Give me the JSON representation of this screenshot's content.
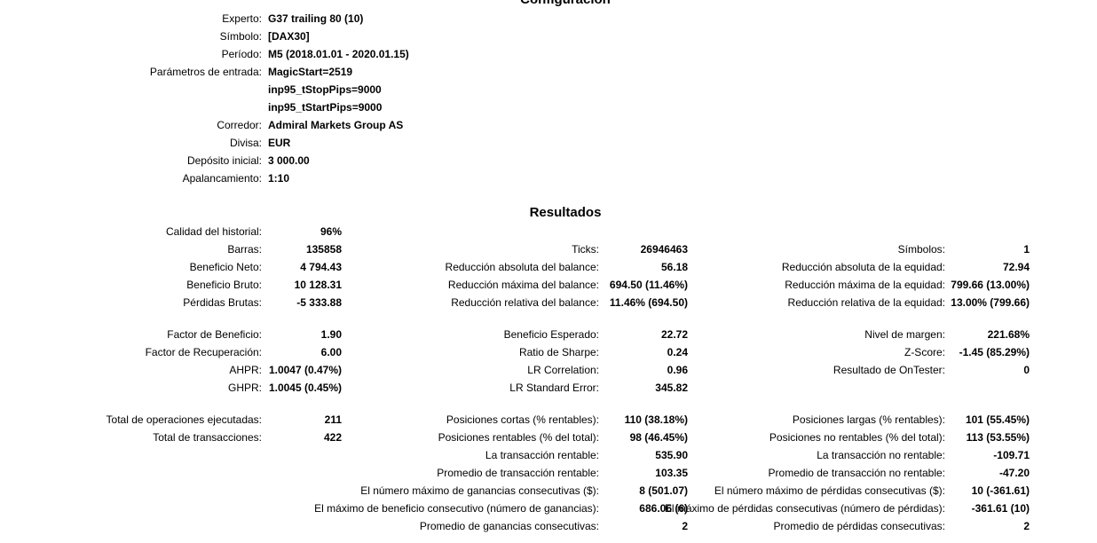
{
  "colors": {
    "text": "#000000",
    "background": "#ffffff"
  },
  "configuration": {
    "title": "Configuración",
    "rows": [
      {
        "label": "Experto:",
        "value": "G37 trailing 80 (10)"
      },
      {
        "label": "Símbolo:",
        "value": "[DAX30]"
      },
      {
        "label": "Período:",
        "value": "M5 (2018.01.01 - 2020.01.15)"
      },
      {
        "label": "Parámetros de entrada:",
        "value": "MagicStart=2519"
      },
      {
        "label": "",
        "value": "inp95_tStopPips=9000"
      },
      {
        "label": "",
        "value": "inp95_tStartPips=9000"
      },
      {
        "label": "Corredor:",
        "value": "Admiral Markets Group AS"
      },
      {
        "label": "Divisa:",
        "value": "EUR"
      },
      {
        "label": "Depósito inicial:",
        "value": "3 000.00"
      },
      {
        "label": "Apalancamiento:",
        "value": "1:10"
      }
    ]
  },
  "results": {
    "title": "Resultados",
    "rows": [
      {
        "c1l": "Calidad del historial:",
        "c1v": "96%",
        "c2l": "",
        "c2v": "",
        "c3l": "",
        "c3v": ""
      },
      {
        "c1l": "Barras:",
        "c1v": "135858",
        "c2l": "Ticks:",
        "c2v": "26946463",
        "c3l": "Símbolos:",
        "c3v": "1"
      },
      {
        "c1l": "Beneficio Neto:",
        "c1v": "4 794.43",
        "c2l": "Reducción absoluta del balance:",
        "c2v": "56.18",
        "c3l": "Reducción absoluta de la equidad:",
        "c3v": "72.94"
      },
      {
        "c1l": "Beneficio Bruto:",
        "c1v": "10 128.31",
        "c2l": "Reducción máxima del balance:",
        "c2v": "694.50 (11.46%)",
        "c3l": "Reducción máxima de la equidad:",
        "c3v": "799.66 (13.00%)"
      },
      {
        "c1l": "Pérdidas Brutas:",
        "c1v": "-5 333.88",
        "c2l": "Reducción relativa del balance:",
        "c2v": "11.46% (694.50)",
        "c3l": "Reducción relativa de la equidad:",
        "c3v": "13.00% (799.66)"
      },
      {
        "spacer": true
      },
      {
        "c1l": "Factor de Beneficio:",
        "c1v": "1.90",
        "c2l": "Beneficio Esperado:",
        "c2v": "22.72",
        "c3l": "Nivel de margen:",
        "c3v": "221.68%"
      },
      {
        "c1l": "Factor de Recuperación:",
        "c1v": "6.00",
        "c2l": "Ratio de Sharpe:",
        "c2v": "0.24",
        "c3l": "Z-Score:",
        "c3v": "-1.45 (85.29%)"
      },
      {
        "c1l": "AHPR:",
        "c1v": "1.0047 (0.47%)",
        "c2l": "LR Correlation:",
        "c2v": "0.96",
        "c3l": "Resultado de OnTester:",
        "c3v": "0"
      },
      {
        "c1l": "GHPR:",
        "c1v": "1.0045 (0.45%)",
        "c2l": "LR Standard Error:",
        "c2v": "345.82",
        "c3l": "",
        "c3v": ""
      },
      {
        "spacer": true
      },
      {
        "c1l": "Total de operaciones ejecutadas:",
        "c1v": "211",
        "c2l": "Posiciones cortas (% rentables):",
        "c2v": "110 (38.18%)",
        "c3l": "Posiciones largas (% rentables):",
        "c3v": "101 (55.45%)"
      },
      {
        "c1l": "Total de transacciones:",
        "c1v": "422",
        "c2l": "Posiciones rentables (% del total):",
        "c2v": "98 (46.45%)",
        "c3l": "Posiciones no rentables (% del total):",
        "c3v": "113 (53.55%)"
      },
      {
        "c1l": "",
        "c1v": "",
        "c2l": "La transacción rentable:",
        "c2v": "535.90",
        "c3l": "La transacción no rentable:",
        "c3v": "-109.71"
      },
      {
        "c1l": "",
        "c1v": "",
        "c2l": "Promedio de transacción rentable:",
        "c2v": "103.35",
        "c3l": "Promedio de transacción no rentable:",
        "c3v": "-47.20"
      },
      {
        "c1l": "",
        "c1v": "",
        "c2l": "El número máximo de ganancias consecutivas ($):",
        "c2v": "8 (501.07)",
        "c3l": "El número máximo de pérdidas consecutivas ($):",
        "c3v": "10 (-361.61)"
      },
      {
        "c1l": "",
        "c1v": "",
        "c2l": "El máximo de beneficio consecutivo (número de ganancias):",
        "c2v": "686.06 (6)",
        "c3l": "El máximo de pérdidas consecutivas (número de pérdidas):",
        "c3v": "-361.61 (10)"
      },
      {
        "c1l": "",
        "c1v": "",
        "c2l": "Promedio de ganancias consecutivas:",
        "c2v": "2",
        "c3l": "Promedio de pérdidas consecutivas:",
        "c3v": "2"
      }
    ]
  }
}
